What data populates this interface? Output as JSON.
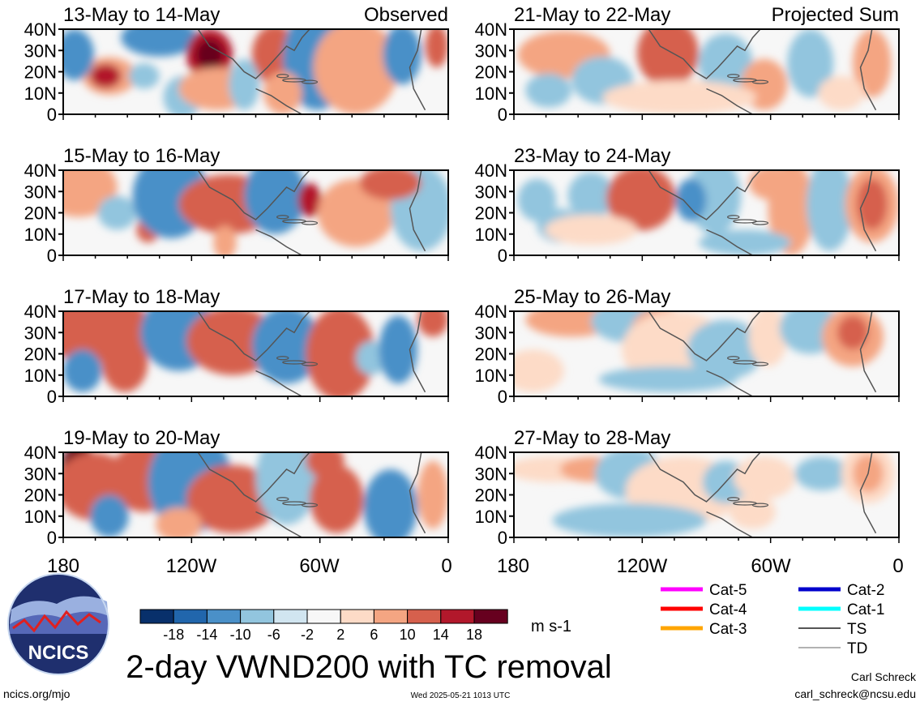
{
  "chart_data": [
    {
      "type": "heatmap",
      "panel": "observed",
      "title": "13-May to 14-May",
      "subtitle": "Observed"
    },
    {
      "type": "heatmap",
      "panel": "observed",
      "title": "15-May to 16-May"
    },
    {
      "type": "heatmap",
      "panel": "observed",
      "title": "17-May to 18-May"
    },
    {
      "type": "heatmap",
      "panel": "observed",
      "title": "19-May to 20-May"
    },
    {
      "type": "heatmap",
      "panel": "projected",
      "title": "21-May to 22-May",
      "subtitle": "Projected Sum"
    },
    {
      "type": "heatmap",
      "panel": "projected",
      "title": "23-May to 24-May"
    },
    {
      "type": "heatmap",
      "panel": "projected",
      "title": "25-May to 26-May"
    },
    {
      "type": "heatmap",
      "panel": "projected",
      "title": "27-May to 28-May"
    }
  ],
  "axes": {
    "y_ticks": [
      "40N",
      "30N",
      "20N",
      "10N",
      "0"
    ],
    "x_ticks": [
      "180",
      "120W",
      "60W",
      "0"
    ]
  },
  "colorbar": {
    "levels": [
      "-18",
      "-14",
      "-10",
      "-6",
      "-2",
      "2",
      "6",
      "10",
      "14",
      "18"
    ],
    "colors": [
      "#08306b",
      "#2166ac",
      "#4a90c8",
      "#92c5de",
      "#d1e5f0",
      "#f7f7f7",
      "#fddbc7",
      "#f4a582",
      "#d6604d",
      "#b2182b",
      "#67001f"
    ],
    "units": "m s-1"
  },
  "legend": [
    {
      "label": "Cat-5",
      "color": "#ff00ff"
    },
    {
      "label": "Cat-4",
      "color": "#ff0000"
    },
    {
      "label": "Cat-3",
      "color": "#ffa500"
    },
    {
      "label": "Cat-2",
      "color": "#0000cc"
    },
    {
      "label": "Cat-1",
      "color": "#00ffff"
    },
    {
      "label": "TS",
      "color": "#555555"
    },
    {
      "label": "TD",
      "color": "#999999"
    }
  ],
  "main_title": "2-day VWND200 with TC removal",
  "logo_text": "NCICS",
  "footer": {
    "url": "ncics.org/mjo",
    "timestamp": "Wed 2025-05-21 1013 UTC",
    "author": "Carl Schreck",
    "email": "carl_schreck@ncsu.edu"
  }
}
